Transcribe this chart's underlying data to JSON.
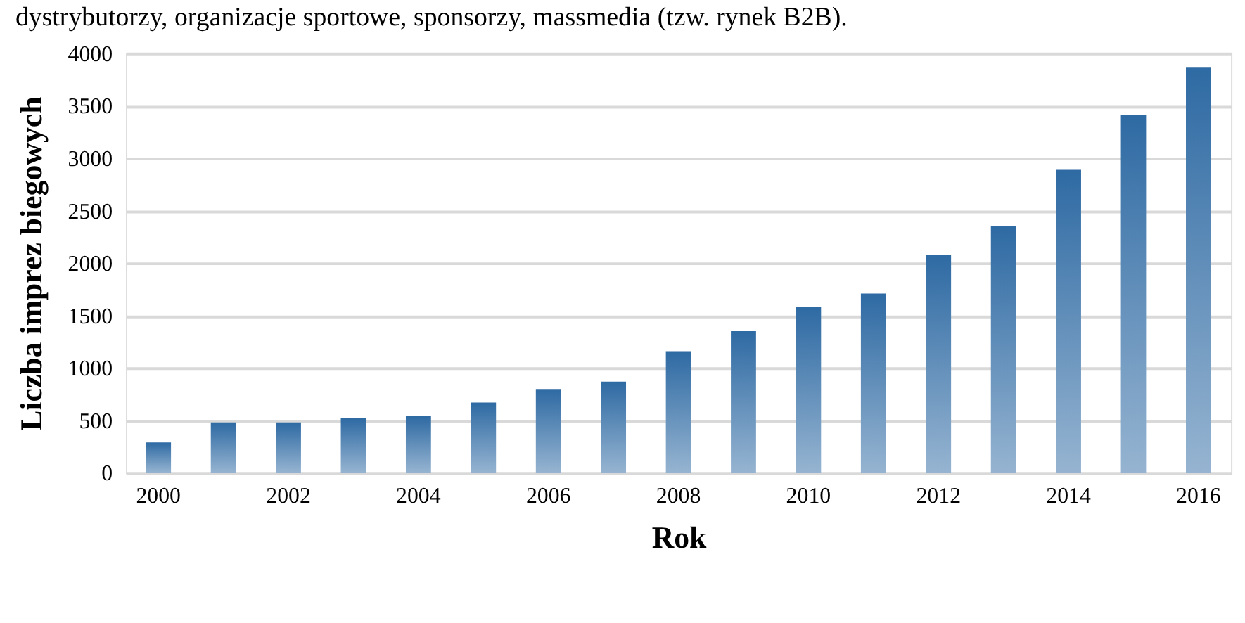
{
  "chart_data": {
    "type": "bar",
    "annotations": [
      "dystrybutorzy, organizacje sportowe, sponsorzy, massmedia (tzw. rynek B2B)."
    ],
    "xlabel": "Rok",
    "ylabel": "Liczba imprez biegowych",
    "categories": [
      "2000",
      null,
      "2002",
      null,
      "2004",
      null,
      "2006",
      null,
      "2008",
      null,
      "2010",
      null,
      "2012",
      null,
      "2014",
      null,
      "2016"
    ],
    "values": [
      290,
      480,
      480,
      520,
      540,
      670,
      800,
      870,
      1160,
      1350,
      1580,
      1710,
      2080,
      2350,
      2890,
      3410,
      3870
    ],
    "color": "#2e6aa3",
    "ylim": [
      0,
      4000
    ],
    "yticks": [
      0,
      500,
      1000,
      1500,
      2000,
      2500,
      3000,
      3500,
      4000
    ],
    "grid": "y"
  }
}
